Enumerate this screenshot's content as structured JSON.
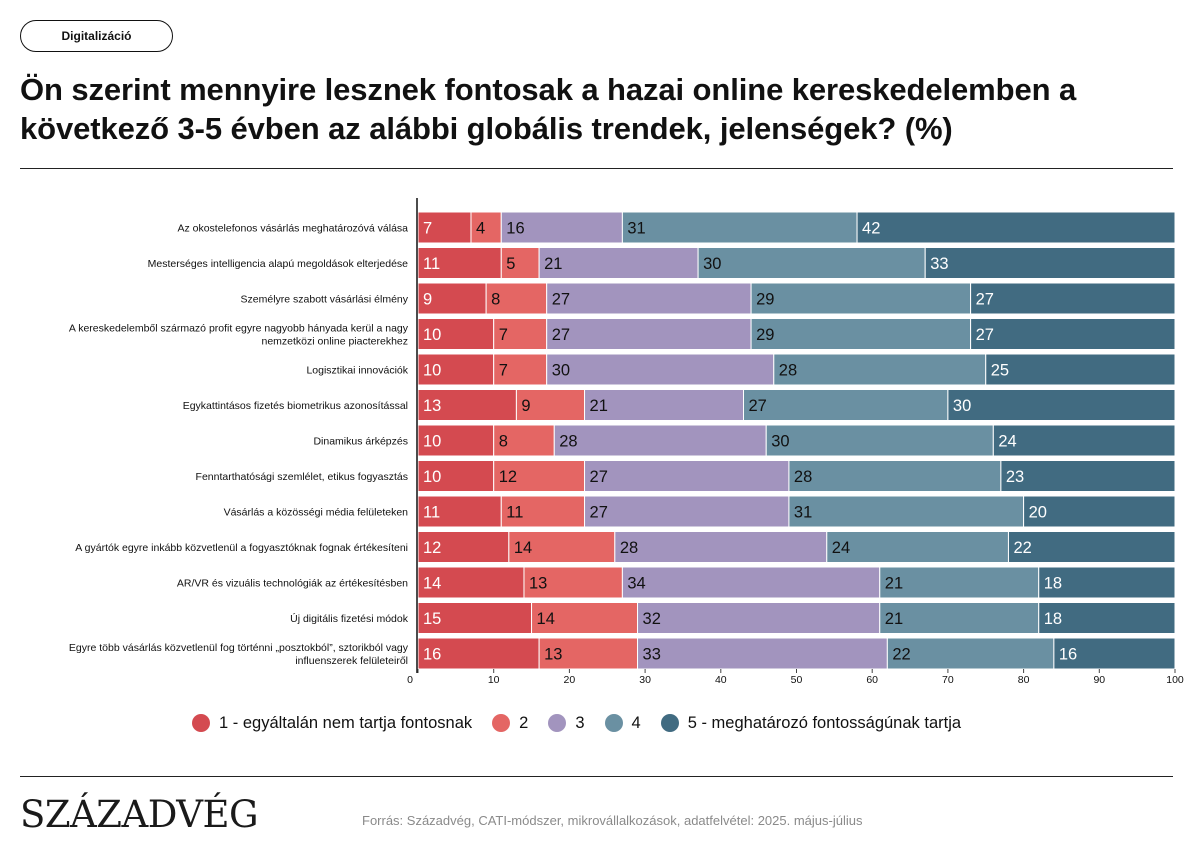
{
  "tag": "Digitalizáció",
  "title": "Ön szerint mennyire lesznek fontosak a hazai online kereskedelemben a következő 3-5 évben az alábbi globális trendek, jelenségek? (%)",
  "brand": "SzázadvéG",
  "source": "Forrás: Századvég, CATI-módszer, mikrovállalkozások, adatfelvétel: 2025. május-július",
  "colors": {
    "s1": "#d44a50",
    "s2": "#e46664",
    "s3": "#a294be",
    "s4": "#6a90a2",
    "s5": "#416b81",
    "label_dark": "#111111",
    "label_light": "#ffffff"
  },
  "chart_data": {
    "type": "bar",
    "orientation": "horizontal",
    "stacked": true,
    "categories": [
      "Az okostelefonos vásárlás meghatározóvá válása",
      "Mesterséges intelligencia alapú megoldások elterjedése",
      "Személyre szabott vásárlási élmény",
      "A kereskedelemből származó profit egyre nagyobb hányada kerül a nagy nemzetközi online piacterekhez",
      "Logisztikai innovációk",
      "Egykattintásos fizetés biometrikus azonosítással",
      "Dinamikus árképzés",
      "Fenntarthatósági szemlélet, etikus fogyasztás",
      "Vásárlás a közösségi média felületeken",
      "A gyártók egyre inkább közvetlenül a fogyasztóknak fognak értékesíteni",
      "AR/VR és vizuális technológiák az értékesítésben",
      "Új digitális fizetési módok",
      "Egyre több vásárlás közvetlenül fog történni „posztokból”, sztorikból vagy influenszerek felületeiről"
    ],
    "category_lines": [
      [
        "Az okostelefonos vásárlás meghatározóvá válása"
      ],
      [
        "Mesterséges intelligencia alapú megoldások elterjedése"
      ],
      [
        "Személyre szabott vásárlási élmény"
      ],
      [
        "A kereskedelemből származó profit egyre nagyobb hányada kerül a nagy",
        "nemzetközi online piacterekhez"
      ],
      [
        "Logisztikai innovációk"
      ],
      [
        "Egykattintásos fizetés biometrikus azonosítással"
      ],
      [
        "Dinamikus árképzés"
      ],
      [
        "Fenntarthatósági szemlélet, etikus fogyasztás"
      ],
      [
        "Vásárlás a közösségi média felületeken"
      ],
      [
        "A gyártók egyre inkább közvetlenül a fogyasztóknak fognak értékesíteni"
      ],
      [
        "AR/VR és vizuális technológiák az értékesítésben"
      ],
      [
        "Új digitális fizetési módok"
      ],
      [
        "Egyre több vásárlás közvetlenül fog történni „posztokból”, sztorikból vagy",
        "influenszerek felületeiről"
      ]
    ],
    "series": [
      {
        "name": "1 - egyáltalán nem tartja fontosnak",
        "color": "#d44a50",
        "label_color": "#ffffff",
        "values": [
          7,
          11,
          9,
          10,
          10,
          13,
          10,
          10,
          11,
          12,
          14,
          15,
          16
        ]
      },
      {
        "name": "2",
        "color": "#e46664",
        "label_color": "#111111",
        "values": [
          4,
          5,
          8,
          7,
          7,
          9,
          8,
          12,
          11,
          14,
          13,
          14,
          13
        ]
      },
      {
        "name": "3",
        "color": "#a294be",
        "label_color": "#111111",
        "values": [
          16,
          21,
          27,
          27,
          30,
          21,
          28,
          27,
          27,
          28,
          34,
          32,
          33
        ]
      },
      {
        "name": "4",
        "color": "#6a90a2",
        "label_color": "#111111",
        "values": [
          31,
          30,
          29,
          29,
          28,
          27,
          30,
          28,
          31,
          24,
          21,
          21,
          22
        ]
      },
      {
        "name": "5 - meghatározó fontosságúnak tartja",
        "color": "#416b81",
        "label_color": "#ffffff",
        "values": [
          42,
          33,
          27,
          27,
          25,
          30,
          24,
          23,
          20,
          22,
          18,
          18,
          16
        ]
      }
    ],
    "xlim": [
      0,
      100
    ],
    "xticks": [
      0,
      10,
      20,
      30,
      40,
      50,
      60,
      70,
      80,
      90,
      100
    ],
    "xlabel": "",
    "ylabel": "",
    "legend": "bottom",
    "grid": false
  }
}
